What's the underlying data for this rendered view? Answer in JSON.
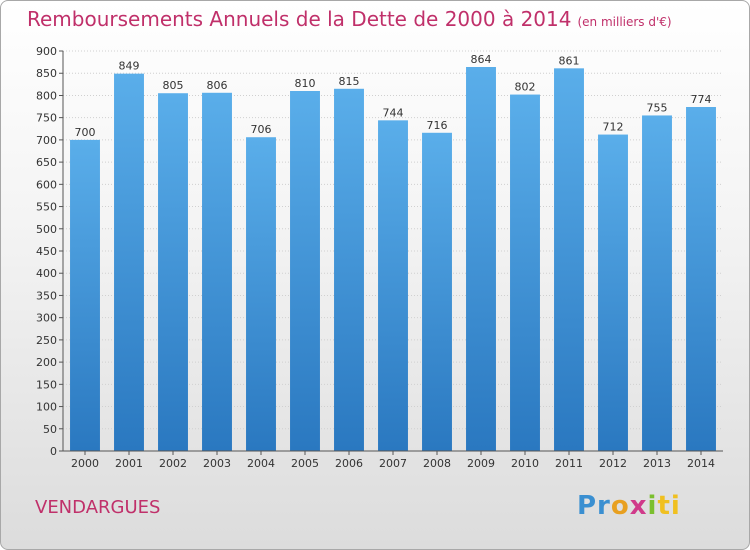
{
  "chart_data": {
    "type": "bar",
    "title": "Remboursements Annuels de la Dette de 2000 à 2014",
    "subtitle": "(en milliers d'€)",
    "categories": [
      "2000",
      "2001",
      "2002",
      "2003",
      "2004",
      "2005",
      "2006",
      "2007",
      "2008",
      "2009",
      "2010",
      "2011",
      "2012",
      "2013",
      "2014"
    ],
    "values": [
      700,
      849,
      805,
      806,
      706,
      810,
      815,
      744,
      716,
      864,
      802,
      861,
      712,
      755,
      774
    ],
    "ylim": [
      0,
      900
    ],
    "yticks": [
      0,
      50,
      100,
      150,
      200,
      250,
      300,
      350,
      400,
      450,
      500,
      550,
      600,
      650,
      700,
      750,
      800,
      850,
      900
    ],
    "xlabel": "",
    "ylabel": "",
    "grid": true,
    "bar_color": "#4a9ee0"
  },
  "commune": "VENDARGUES",
  "logo": {
    "p1": "Pr",
    "p2": "o",
    "p3": "x",
    "p4": "i",
    "p5": "ti"
  }
}
